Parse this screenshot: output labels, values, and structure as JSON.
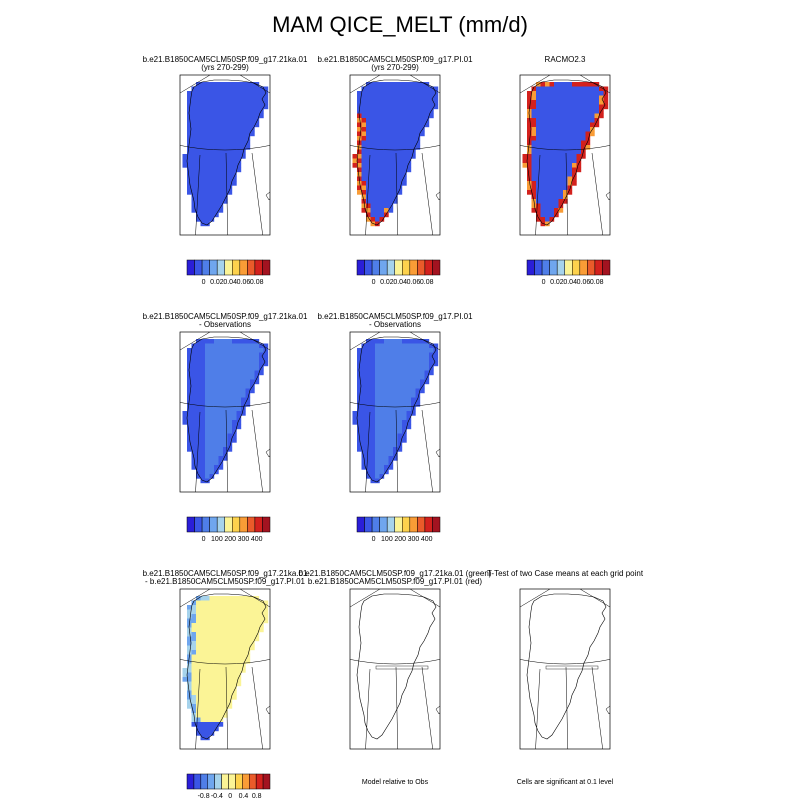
{
  "title": "MAM QICE_MELT (mm/d)",
  "colors": {
    "ramp_sequential": [
      "#2a1ed8",
      "#3a55e6",
      "#4f7ee8",
      "#6fa6ee",
      "#a6d3ec",
      "#fbf496",
      "#fdd24c",
      "#f99c36",
      "#ea5b2a",
      "#d3211d",
      "#a31320"
    ],
    "ramp_diverging": [
      "#2a1ed8",
      "#3a55e6",
      "#4f7ee8",
      "#6fa6ee",
      "#a6d3ec",
      "#fbf496",
      "#fbf496",
      "#fdd24c",
      "#f99c36",
      "#ea5b2a",
      "#d3211d",
      "#a31320"
    ],
    "ice_low": "#3a55e6",
    "ice_mid": "#4f7ee8",
    "ice_diff": "#fbf496",
    "ice_edge_red": "#d3211d",
    "ice_edge_orange": "#f99c36"
  },
  "panels": [
    {
      "id": "p1",
      "title": [
        "b.e21.B1850CAM5CLM50SP.f09_g17.21ka.01",
        "(yrs 270-299)"
      ],
      "style": "model",
      "colorbar": {
        "labels": [
          "0",
          "0.02",
          "0.04",
          "0.06",
          "0.08"
        ],
        "ramp": "sequential"
      }
    },
    {
      "id": "p2",
      "title": [
        "b.e21.B1850CAM5CLM50SP.f09_g17.PI.01",
        "(yrs 270-299)"
      ],
      "style": "model_melt",
      "colorbar": {
        "labels": [
          "0",
          "0.02",
          "0.04",
          "0.06",
          "0.08"
        ],
        "ramp": "sequential"
      }
    },
    {
      "id": "p3",
      "title": [
        "RACMO2.3"
      ],
      "style": "obs",
      "colorbar": {
        "labels": [
          "0",
          "0.02",
          "0.04",
          "0.06",
          "0.08"
        ],
        "ramp": "sequential"
      }
    },
    {
      "id": "p4",
      "title": [
        "b.e21.B1850CAM5CLM50SP.f09_g17.21ka.01",
        "- Observations"
      ],
      "style": "bias",
      "colorbar": {
        "labels": [
          "0",
          "100",
          "200",
          "300",
          "400"
        ],
        "ramp": "sequential"
      }
    },
    {
      "id": "p5",
      "title": [
        "b.e21.B1850CAM5CLM50SP.f09_g17.PI.01",
        "- Observations"
      ],
      "style": "bias",
      "colorbar": {
        "labels": [
          "0",
          "100",
          "200",
          "300",
          "400"
        ],
        "ramp": "sequential"
      }
    },
    {
      "id": "p7",
      "title": [
        "b.e21.B1850CAM5CLM50SP.f09_g17.21ka.01",
        "- b.e21.B1850CAM5CLM50SP.f09_g17.PI.01"
      ],
      "style": "diff",
      "colorbar": {
        "labels": [
          "-0.8",
          "-0.4",
          "0",
          "0.4",
          "0.8"
        ],
        "ramp": "diverging"
      }
    },
    {
      "id": "p8",
      "title": [
        "b.e21.B1850CAM5CLM50SP.f09_g17.21ka.01 (green)",
        "b.e21.B1850CAM5CLM50SP.f09_g17.PI.01 (red)"
      ],
      "style": "outline",
      "footer": "Model relative to Obs"
    },
    {
      "id": "p9",
      "title": [
        "T-Test of two Case means at each grid point"
      ],
      "style": "outline",
      "footer": "Cells are significant at 0.1 level"
    }
  ]
}
